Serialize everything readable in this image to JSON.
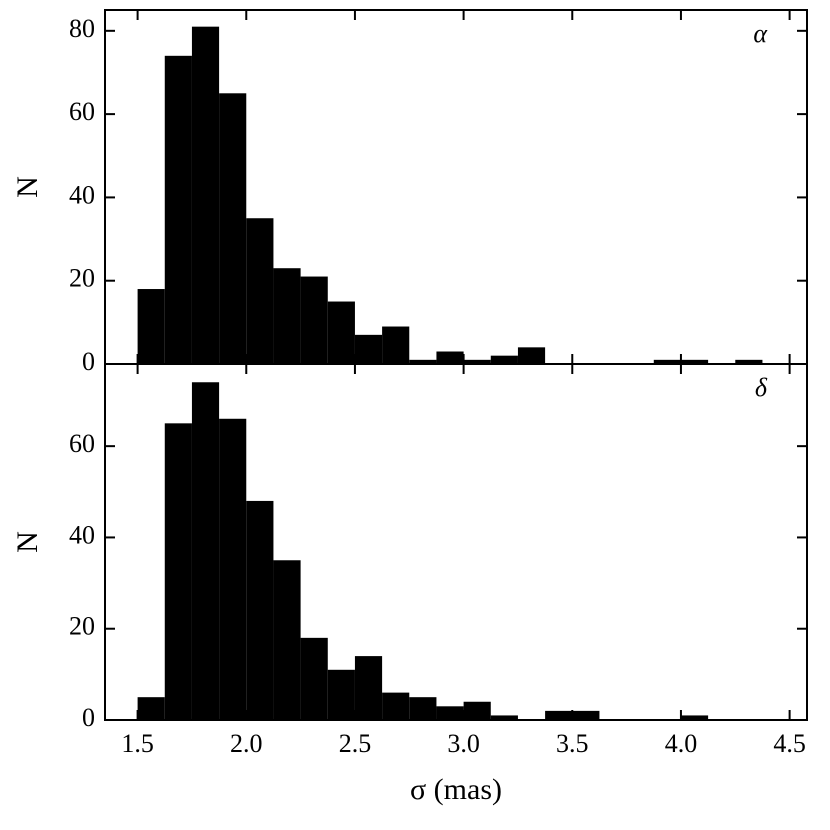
{
  "chart_data": [
    {
      "type": "histogram",
      "annotation": "α",
      "ylabel": "N",
      "bins": [
        1.5,
        1.625,
        1.75,
        1.875,
        2.0,
        2.125,
        2.25,
        2.375,
        2.5,
        2.625,
        2.75,
        2.875,
        3.0,
        3.125,
        3.25,
        3.375,
        3.5,
        3.625,
        3.75,
        3.875,
        4.0,
        4.125,
        4.25,
        4.375
      ],
      "values": [
        18,
        74,
        81,
        65,
        35,
        23,
        21,
        15,
        7,
        9,
        1,
        3,
        1,
        2,
        4,
        0,
        0,
        0,
        0,
        1,
        1,
        0,
        1
      ],
      "color": "#000000",
      "xlim": [
        1.35,
        4.58
      ],
      "ylim": [
        0,
        85
      ],
      "yticks": [
        0,
        20,
        40,
        60,
        80
      ]
    },
    {
      "type": "histogram",
      "annotation": "δ",
      "ylabel": "N",
      "xlabel": "σ (mas)",
      "bins": [
        1.5,
        1.625,
        1.75,
        1.875,
        2.0,
        2.125,
        2.25,
        2.375,
        2.5,
        2.625,
        2.75,
        2.875,
        3.0,
        3.125,
        3.25,
        3.375,
        3.5,
        3.625,
        3.75,
        3.875,
        4.0,
        4.125,
        4.25,
        4.375
      ],
      "values": [
        5,
        65,
        74,
        66,
        48,
        35,
        18,
        11,
        14,
        6,
        5,
        3,
        4,
        1,
        0,
        2,
        2,
        0,
        0,
        0,
        1,
        0,
        0
      ],
      "color": "#000000",
      "xlim": [
        1.35,
        4.58
      ],
      "ylim": [
        0,
        78
      ],
      "yticks": [
        0,
        20,
        40,
        60
      ],
      "xticks": [
        1.5,
        {
          "value": 2.0,
          "label": "2.0"
        },
        2.5,
        {
          "value": 3.0,
          "label": "3.0"
        },
        3.5,
        {
          "value": 4.0,
          "label": "4.0"
        },
        4.5
      ]
    }
  ]
}
